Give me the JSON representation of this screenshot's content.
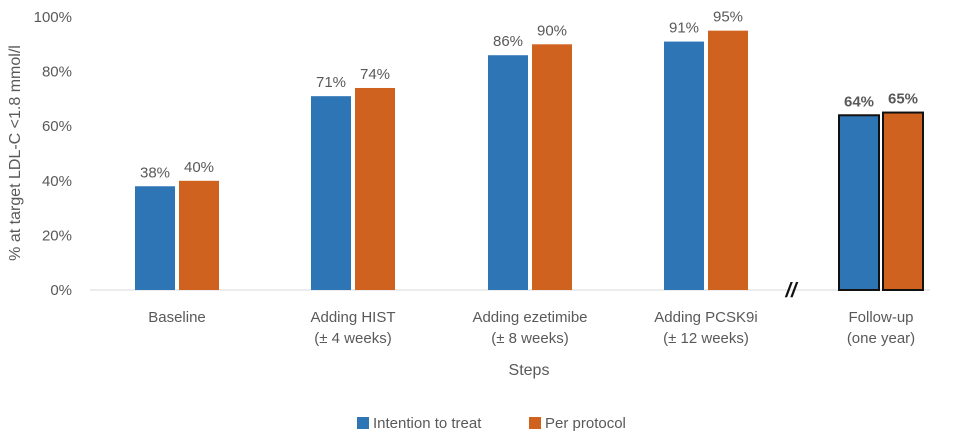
{
  "chart_data": {
    "type": "bar",
    "title": "",
    "xlabel": "Steps",
    "ylabel": "% at target LDL-C <1.8 mmol/l",
    "ylim": [
      0,
      100
    ],
    "yticks": [
      "0%",
      "20%",
      "40%",
      "60%",
      "80%",
      "100%"
    ],
    "categories": [
      [
        "Baseline"
      ],
      [
        "Adding HIST",
        "(± 4 weeks)"
      ],
      [
        "Adding ezetimibe",
        "(± 8 weeks)"
      ],
      [
        "Adding PCSK9i",
        "(± 12 weeks)"
      ],
      [
        "Follow-up",
        "(one year)"
      ]
    ],
    "series": [
      {
        "name": "Intention to treat",
        "color": "#2e75b6",
        "values": [
          38,
          71,
          86,
          91,
          64
        ],
        "labels": [
          "38%",
          "71%",
          "86%",
          "91%",
          "64%"
        ]
      },
      {
        "name": "Per protocol",
        "color": "#d0621f",
        "values": [
          40,
          74,
          90,
          95,
          65
        ],
        "labels": [
          "40%",
          "74%",
          "90%",
          "95%",
          "65%"
        ]
      }
    ],
    "axis_break_label": "//",
    "emphasized_category": "Follow-up",
    "legend_position": "bottom-center",
    "grid": false
  }
}
